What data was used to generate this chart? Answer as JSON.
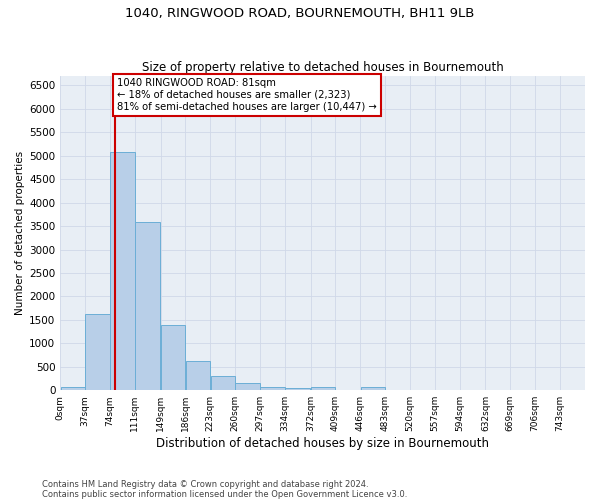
{
  "title": "1040, RINGWOOD ROAD, BOURNEMOUTH, BH11 9LB",
  "subtitle": "Size of property relative to detached houses in Bournemouth",
  "xlabel": "Distribution of detached houses by size in Bournemouth",
  "ylabel": "Number of detached properties",
  "footnote1": "Contains HM Land Registry data © Crown copyright and database right 2024.",
  "footnote2": "Contains public sector information licensed under the Open Government Licence v3.0.",
  "bar_color": "#b8cfe8",
  "bar_edge_color": "#6baed6",
  "annotation_line1": "1040 RINGWOOD ROAD: 81sqm",
  "annotation_line2": "← 18% of detached houses are smaller (2,323)",
  "annotation_line3": "81% of semi-detached houses are larger (10,447) →",
  "vline_color": "#cc0000",
  "annotation_box_edgecolor": "#cc0000",
  "categories": [
    "0sqm",
    "37sqm",
    "74sqm",
    "111sqm",
    "149sqm",
    "186sqm",
    "223sqm",
    "260sqm",
    "297sqm",
    "334sqm",
    "372sqm",
    "409sqm",
    "446sqm",
    "483sqm",
    "520sqm",
    "557sqm",
    "594sqm",
    "632sqm",
    "669sqm",
    "706sqm",
    "743sqm"
  ],
  "bin_edges": [
    0,
    37,
    74,
    111,
    149,
    186,
    223,
    260,
    297,
    334,
    372,
    409,
    446,
    483,
    520,
    557,
    594,
    632,
    669,
    706,
    743,
    780
  ],
  "values": [
    75,
    1630,
    5080,
    3580,
    1400,
    620,
    300,
    155,
    75,
    50,
    65,
    0,
    65,
    0,
    0,
    0,
    0,
    0,
    0,
    0,
    0
  ],
  "property_size": 81,
  "ylim": [
    0,
    6700
  ],
  "yticks": [
    0,
    500,
    1000,
    1500,
    2000,
    2500,
    3000,
    3500,
    4000,
    4500,
    5000,
    5500,
    6000,
    6500
  ],
  "grid_color": "#d0d8e8",
  "bg_color": "#e8eef5",
  "title_fontsize": 9.5,
  "subtitle_fontsize": 8.5,
  "xlabel_fontsize": 8.5,
  "ylabel_fontsize": 7.5,
  "tick_fontsize": 7.5,
  "xtick_fontsize": 6.5,
  "annotation_fontsize": 7.2,
  "footnote_fontsize": 6.0
}
